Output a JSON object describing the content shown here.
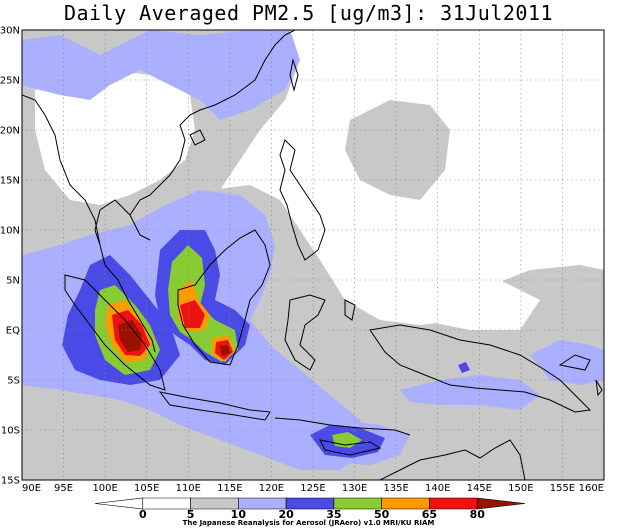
{
  "title": "Daily Averaged PM2.5 [ug/m3]: 31Jul2011",
  "credit": "The Japanese Reanalysis for Aerosol (JRAero) v1.0 MRI/KU RIAM",
  "lat_ticks": [
    "30N",
    "25N",
    "20N",
    "15N",
    "10N",
    "5N",
    "EQ",
    "5S",
    "10S",
    "15S"
  ],
  "lon_ticks": [
    "90E",
    "95E",
    "100E",
    "105E",
    "110E",
    "115E",
    "120E",
    "125E",
    "130E",
    "135E",
    "140E",
    "145E",
    "150E",
    "155E",
    "160E"
  ],
  "legend": {
    "labels": [
      "0",
      "5",
      "10",
      "20",
      "35",
      "50",
      "65",
      "80"
    ],
    "colors": [
      "#ffffff",
      "#ffffff",
      "#c8c8c8",
      "#aab0ff",
      "#4a4ae6",
      "#88cc33",
      "#ff9900",
      "#ee1111",
      "#991100"
    ]
  },
  "colors": {
    "low": "#c8c8c8",
    "lightblue": "#aab0ff",
    "blue": "#4a4ae6",
    "green": "#88cc33",
    "orange": "#ff9900",
    "red": "#ee1111",
    "darkred": "#991100"
  }
}
